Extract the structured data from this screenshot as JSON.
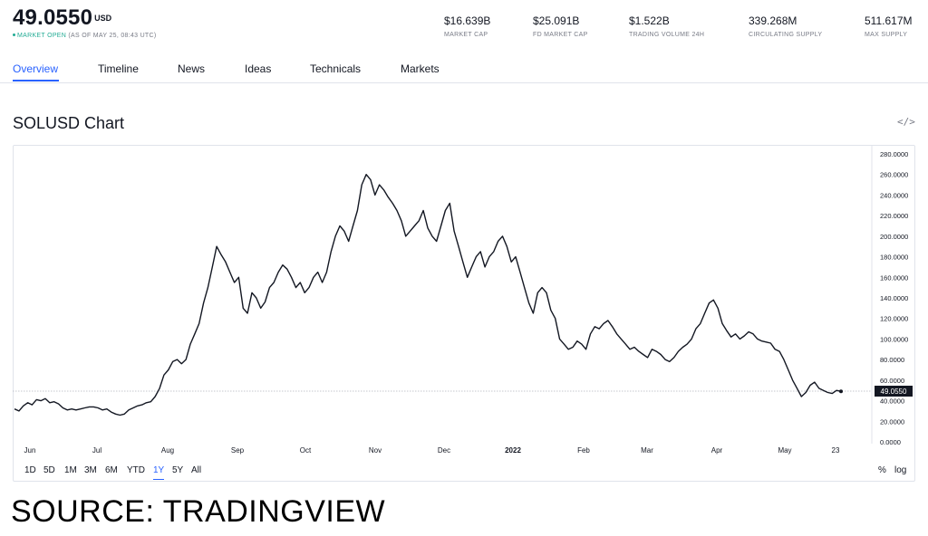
{
  "header": {
    "price": "49.0550",
    "currency": "USD",
    "status_open": "MARKET OPEN",
    "status_time": "(AS OF MAY 25, 08:43 UTC)",
    "stats": [
      {
        "value": "$16.639B",
        "label": "MARKET CAP"
      },
      {
        "value": "$25.091B",
        "label": "FD MARKET CAP"
      },
      {
        "value": "$1.522B",
        "label": "TRADING VOLUME 24H"
      },
      {
        "value": "339.268M",
        "label": "CIRCULATING SUPPLY"
      },
      {
        "value": "511.617M",
        "label": "MAX SUPPLY"
      }
    ]
  },
  "tabs": [
    {
      "label": "Overview",
      "active": true
    },
    {
      "label": "Timeline"
    },
    {
      "label": "News"
    },
    {
      "label": "Ideas"
    },
    {
      "label": "Technicals"
    },
    {
      "label": "Markets"
    }
  ],
  "chart_title": "SOLUSD Chart",
  "embed_icon": "code-embed-icon",
  "ranges": [
    "1D",
    "5D",
    "1M",
    "3M",
    "6M",
    "YTD",
    "1Y",
    "5Y",
    "All"
  ],
  "active_range": "1Y",
  "scale_options": {
    "percent": "%",
    "log": "log"
  },
  "source_text": "SOURCE: TRADINGVIEW",
  "colors": {
    "accent": "#2962ff",
    "open": "#22ab94",
    "line": "#131722",
    "last_price_bg": "#131722"
  },
  "chart_data": {
    "type": "line",
    "title": "SOLUSD Chart",
    "series": [
      {
        "values": [
          32,
          30,
          35,
          38,
          36,
          41,
          40,
          42,
          38,
          39,
          37,
          33,
          31,
          32,
          31,
          32,
          33,
          34,
          34,
          33,
          31,
          32,
          29,
          27,
          26,
          27,
          31,
          33,
          35,
          36,
          38,
          39,
          44,
          52,
          65,
          70,
          78,
          80,
          76,
          80,
          95,
          105,
          115,
          135,
          150,
          170,
          190,
          182,
          175,
          165,
          155,
          160,
          130,
          125,
          145,
          140,
          130,
          136,
          150,
          155,
          165,
          172,
          168,
          160,
          150,
          155,
          145,
          150,
          160,
          165,
          155,
          165,
          185,
          200,
          210,
          205,
          195,
          210,
          225,
          250,
          260,
          255,
          240,
          250,
          245,
          238,
          232,
          225,
          215,
          200,
          205,
          210,
          215,
          225,
          208,
          200,
          195,
          210,
          225,
          232,
          205,
          190,
          175,
          160,
          170,
          180,
          185,
          170,
          180,
          185,
          195,
          200,
          190,
          175,
          180,
          165,
          150,
          135,
          125,
          145,
          150,
          145,
          128,
          120,
          100,
          95,
          90,
          92,
          98,
          95,
          90,
          105,
          112,
          110,
          115,
          118,
          112,
          105,
          100,
          95,
          90,
          92,
          88,
          85,
          82,
          90,
          88,
          85,
          80,
          78,
          82,
          88,
          92,
          95,
          100,
          110,
          115,
          125,
          135,
          138,
          130,
          115,
          108,
          102,
          105,
          100,
          103,
          107,
          105,
          100,
          98,
          97,
          96,
          90,
          88,
          80,
          70,
          60,
          52,
          44,
          48,
          55,
          58,
          52,
          50,
          48,
          47,
          50,
          49.055
        ]
      }
    ],
    "x_tick_labels": [
      "Jun",
      "Jul",
      "Aug",
      "Sep",
      "Oct",
      "Nov",
      "Dec",
      "2022",
      "Feb",
      "Mar",
      "Apr",
      "May",
      "23"
    ],
    "y_tick_labels": [
      "280.0000",
      "260.0000",
      "240.0000",
      "220.0000",
      "200.0000",
      "180.0000",
      "160.0000",
      "140.0000",
      "120.0000",
      "100.0000",
      "80.0000",
      "60.0000",
      "40.0000",
      "20.0000",
      "0.0000"
    ],
    "ylim": [
      0,
      280
    ],
    "last_price_label": "49.0550",
    "last_price": 49.055,
    "grid": false
  }
}
